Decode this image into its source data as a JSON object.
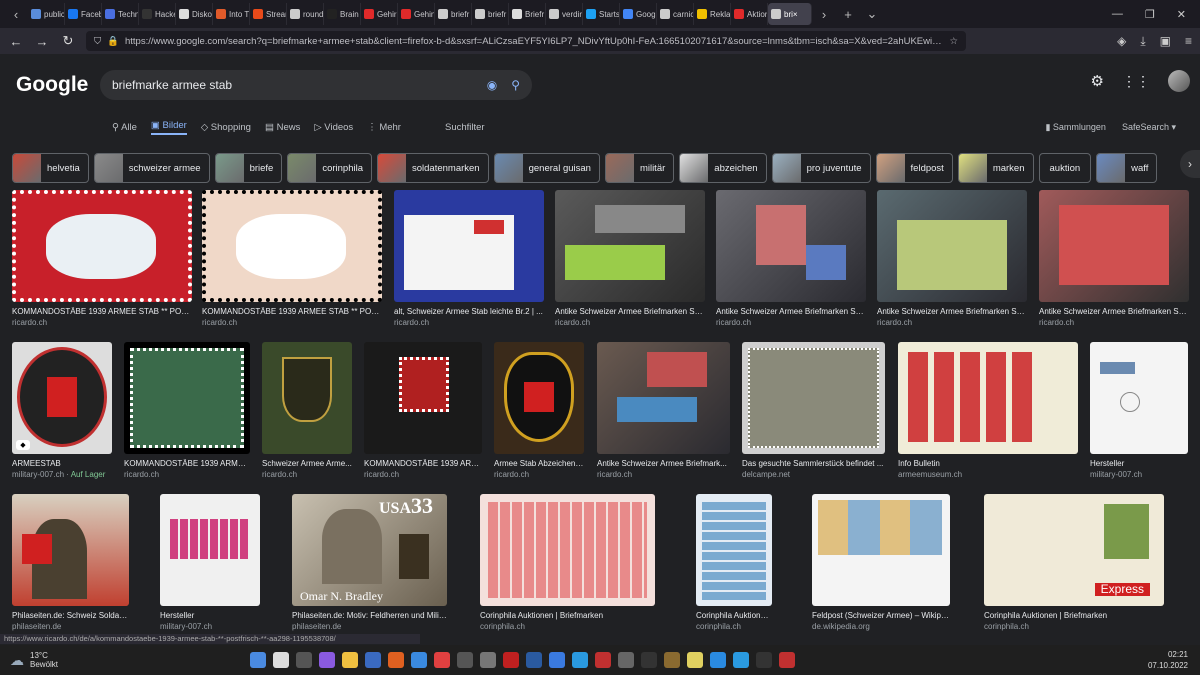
{
  "browser": {
    "tabs": [
      {
        "label": "public",
        "color": "#5a8ddc"
      },
      {
        "label": "Faceb",
        "color": "#1877f2"
      },
      {
        "label": "Techn",
        "color": "#4a6ee0"
      },
      {
        "label": "Hacke",
        "color": "#333333"
      },
      {
        "label": "Disko",
        "color": "#dddddd"
      },
      {
        "label": "Into T",
        "color": "#e05a2a"
      },
      {
        "label": "Strean",
        "color": "#e84a1a"
      },
      {
        "label": "round",
        "color": "#cccccc"
      },
      {
        "label": "Brain",
        "color": "#222222"
      },
      {
        "label": "Gehir",
        "color": "#e02a2a"
      },
      {
        "label": "Gehin",
        "color": "#e02a2a"
      },
      {
        "label": "briefr",
        "color": "#cccccc"
      },
      {
        "label": "briefr",
        "color": "#cccccc"
      },
      {
        "label": "Briefr",
        "color": "#dddddd"
      },
      {
        "label": "verdir",
        "color": "#cccccc"
      },
      {
        "label": "Startse",
        "color": "#1da1f2"
      },
      {
        "label": "Goog",
        "color": "#4285f4"
      },
      {
        "label": "carnic",
        "color": "#cccccc"
      },
      {
        "label": "Reklar",
        "color": "#f0c000"
      },
      {
        "label": "Aktion",
        "color": "#e02a2a"
      },
      {
        "label": "bri×",
        "color": "#cccccc",
        "active": true
      }
    ],
    "url": "https://www.google.com/search?q=briefmarke+armee+stab&client=firefox-b-d&sxsrf=ALiCzsaEYF5YI6LP7_NDivYftUp0hI-FeA:1665102071617&source=lnms&tbm=isch&sa=X&ved=2ahUKEwiPhPnL7Mz6"
  },
  "google": {
    "logo": "Google",
    "query": "briefmarke armee stab",
    "tabs": [
      "Alle",
      "Bilder",
      "Shopping",
      "News",
      "Videos",
      "Mehr"
    ],
    "active_tab": "Bilder",
    "tools": "Suchfilter",
    "collections": "Sammlungen",
    "safesearch": "SafeSearch"
  },
  "chips": [
    {
      "label": "helvetia",
      "color": "#c84a3a"
    },
    {
      "label": "schweizer armee",
      "color": "#8a8a8a"
    },
    {
      "label": "briefe",
      "color": "#7a9a8a"
    },
    {
      "label": "corinphila",
      "color": "#7a8a6a"
    },
    {
      "label": "soldatenmarken",
      "color": "#d84a3a"
    },
    {
      "label": "general guisan",
      "color": "#6a8ab0"
    },
    {
      "label": "militär",
      "color": "#9a6a5a"
    },
    {
      "label": "abzeichen",
      "color": "#e0e0e0"
    },
    {
      "label": "pro juventute",
      "color": "#9ab0c0"
    },
    {
      "label": "feldpost",
      "color": "#d0a080"
    },
    {
      "label": "marken",
      "color": "#e0e080"
    },
    {
      "label": "auktion",
      "color": ""
    },
    {
      "label": "waff",
      "color": "#6a8ac0"
    }
  ],
  "results": [
    {
      "title": "KOMMANDOSTÄBE 1939 ARMEE STAB ** POST...",
      "source": "ricardo.ch",
      "img": "stamp-red-web"
    },
    {
      "title": "KOMMANDOSTÄBE 1939 ARMEE STAB ** POST...",
      "source": "ricardo.ch",
      "img": "stamp-back"
    },
    {
      "title": "alt, Schweizer Armee Stab leichte Br.2 | ...",
      "source": "ricardo.ch",
      "img": "envelope-blue"
    },
    {
      "title": "Antike Schweizer Armee Briefmarken Se...",
      "source": "ricardo.ch",
      "img": "album-green"
    },
    {
      "title": "Antike Schweizer Armee Briefmarken Se...",
      "source": "ricardo.ch",
      "img": "album-red"
    },
    {
      "title": "Antike Schweizer Armee Briefmarken Se...",
      "source": "ricardo.ch",
      "img": "album-block"
    },
    {
      "title": "Antike Schweizer Armee Briefmarken Se...",
      "source": "ricardo.ch",
      "img": "album-cross"
    },
    {
      "title": "ARMEESTAB",
      "source": "military-007.ch",
      "stock": "Auf Lager",
      "img": "badge-round"
    },
    {
      "title": "KOMMANDOSTÄBE 1939 ARMEE...",
      "source": "ricardo.ch",
      "img": "stamp-green"
    },
    {
      "title": "Schweizer Armee Arme...",
      "source": "ricardo.ch",
      "img": "patch-green"
    },
    {
      "title": "KOMMANDOSTÄBE 1939 ARM...",
      "source": "ricardo.ch",
      "img": "stamp-soldier"
    },
    {
      "title": "Armee Stab Abzeichen ...",
      "source": "ricardo.ch",
      "img": "patch-black"
    },
    {
      "title": "Antike Schweizer Armee Briefmark...",
      "source": "ricardo.ch",
      "img": "album-mixed"
    },
    {
      "title": "Das gesuchte Sammlerstück befindet ...",
      "source": "delcampe.net",
      "img": "stamp-gray"
    },
    {
      "title": "Info Bulletin",
      "source": "armeemuseum.ch",
      "img": "sheet-red"
    },
    {
      "title": "Hersteller",
      "source": "military-007.ch",
      "img": "envelope-white"
    },
    {
      "title": "Philaseiten.de: Schweiz Soldaten...",
      "source": "philaseiten.de",
      "img": "general-poster"
    },
    {
      "title": "Hersteller",
      "source": "military-007.ch",
      "img": "envelope-red"
    },
    {
      "title": "Philaseiten.de: Motiv: Feldherren und Militärfüh...",
      "source": "philaseiten.de",
      "img": "usa-stamp",
      "overlay": "Omar N. Bradley",
      "usa": "USA",
      "value": "33"
    },
    {
      "title": "Corinphila Auktionen | Briefmarken",
      "source": "corinphila.ch",
      "img": "sheet-pink"
    },
    {
      "title": "Corinphila Auktionen | Briefm...",
      "source": "corinphila.ch",
      "img": "sheet-blue"
    },
    {
      "title": "Feldpost (Schweizer Armee) – Wikipedia",
      "source": "de.wikipedia.org",
      "img": "feldpost-block"
    },
    {
      "title": "Corinphila Auktionen | Briefmarken",
      "source": "corinphila.ch",
      "img": "express-cover",
      "overlay": "Express"
    }
  ],
  "status_url": "https://www.ricardo.ch/de/a/kommandostaebe-1939-armee-stab-**-postfrisch-**-aa298-1195538708/",
  "taskbar": {
    "temp": "13°C",
    "weather": "Bewölkt",
    "time": "02:21",
    "date": "07.10.2022"
  }
}
